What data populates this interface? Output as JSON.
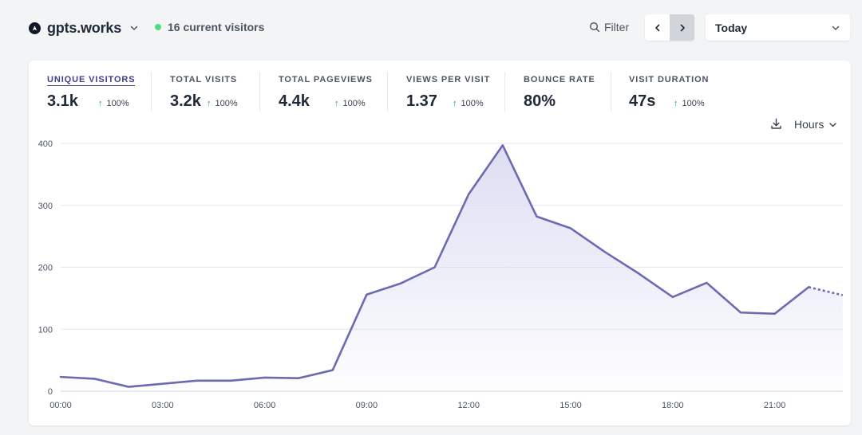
{
  "site": {
    "name": "gpts.works",
    "logo_icon": "compass-icon"
  },
  "live": {
    "text": "16 current visitors",
    "color": "#4ade80"
  },
  "filter": {
    "label": "Filter"
  },
  "period": {
    "label": "Today"
  },
  "stats": [
    {
      "label": "UNIQUE VISITORS",
      "value": "3.1k",
      "change": "100%",
      "active": true
    },
    {
      "label": "TOTAL VISITS",
      "value": "3.2k",
      "change": "100%"
    },
    {
      "label": "TOTAL PAGEVIEWS",
      "value": "4.4k",
      "change": "100%"
    },
    {
      "label": "VIEWS PER VISIT",
      "value": "1.37",
      "change": "100%"
    },
    {
      "label": "BOUNCE RATE",
      "value": "80%",
      "change": ""
    },
    {
      "label": "VISIT DURATION",
      "value": "47s",
      "change": "100%"
    }
  ],
  "interval": {
    "label": "Hours"
  },
  "colors": {
    "line": "#6c6bb0",
    "fill_top": "#dcdcf3",
    "grid": "#e5e7eb",
    "accent": "#3f3d8f",
    "up": "#16a34a"
  },
  "chart_data": {
    "type": "area",
    "title": "",
    "xlabel": "",
    "ylabel": "",
    "ylim": [
      0,
      400
    ],
    "yticks": [
      "0",
      "100",
      "200",
      "300",
      "400"
    ],
    "xticks": [
      "00:00",
      "03:00",
      "06:00",
      "09:00",
      "12:00",
      "15:00",
      "18:00",
      "21:00"
    ],
    "x": [
      0,
      1,
      2,
      3,
      4,
      5,
      6,
      7,
      8,
      9,
      10,
      11,
      12,
      13,
      14,
      15,
      16,
      17,
      18,
      19,
      20,
      21,
      22,
      23
    ],
    "series": [
      {
        "name": "Unique visitors",
        "values": [
          23,
          20,
          7,
          12,
          17,
          17,
          22,
          21,
          34,
          156,
          174,
          200,
          318,
          397,
          282,
          263,
          225,
          190,
          152,
          175,
          127,
          125,
          168,
          155
        ],
        "dashed_from": 22
      }
    ],
    "grid": true
  }
}
